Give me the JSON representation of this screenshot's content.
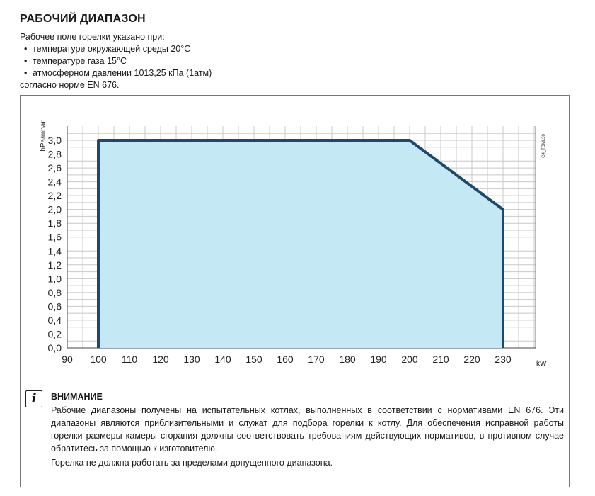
{
  "section": {
    "title": "РАБОЧИЙ ДИАПАЗОН",
    "intro": "Рабочее поле горелки указано при:",
    "conditions": [
      "температуре окружающей среды 20°C",
      "температуре газа 15°C",
      "атмосферном давлении 1013,25 кПа (1атм)"
    ],
    "standard_note": "согласно норме EN 676."
  },
  "chart_data": {
    "type": "area",
    "title": "",
    "xlabel": "kW",
    "ylabel": "hPa/mbar",
    "xlim": [
      90,
      230
    ],
    "ylim": [
      0,
      3.0
    ],
    "x_ticks": [
      "90",
      "100",
      "110",
      "120",
      "130",
      "140",
      "150",
      "160",
      "170",
      "180",
      "190",
      "200",
      "210",
      "220",
      "230"
    ],
    "y_ticks": [
      "0,0",
      "0,2",
      "0,4",
      "0,6",
      "0,8",
      "1,0",
      "1,2",
      "1,4",
      "1,6",
      "1,8",
      "2,0",
      "2,2",
      "2,4",
      "2,6",
      "2,8",
      "3,0"
    ],
    "grid": true,
    "series": [
      {
        "x": [
          100,
          100,
          200,
          230,
          230
        ],
        "y": [
          0,
          3.0,
          3.0,
          2.0,
          0
        ]
      }
    ],
    "colors": {
      "fill": "#c5e8f5",
      "line": "#1c4a6e",
      "grid": "#c8c8c8"
    },
    "code_label": "C4_TBML30"
  },
  "note": {
    "icon": "info-italic-i-icon",
    "icon_glyph": "i",
    "title": "ВНИМАНИЕ",
    "text": "Рабочие диапазоны получены на испытательных котлах, выполненных в соответствии с нормативами EN 676. Эти диапазоны являются приблизительными и служат для подбора горелки к котлу. Для обеспечения исправной работы горелки размеры камеры сгорания должны соответствовать требованиям действующих нормативов, в противном случае обратитесь за помощью к изготовителю.",
    "text2": "Горелка не должна работать за пределами допущенного диапазона."
  }
}
